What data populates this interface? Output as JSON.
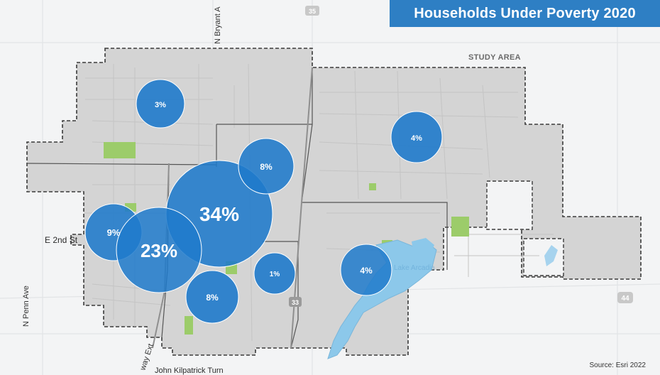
{
  "title": "Households Under Poverty 2020",
  "study_area_label": "STUDY AREA",
  "source": "Source: Esri 2022",
  "street_labels": {
    "bryant": "N Bryant A",
    "second": "E 2nd St",
    "penn": "N Penn Ave",
    "broadway": "way Ext",
    "lake_park": "John Kilpatrick Turn"
  },
  "highway_shields": {
    "i35": "35",
    "us44": "44",
    "r33": "33"
  },
  "bubbles": [
    {
      "name": "bubble-nw",
      "label": "3%"
    },
    {
      "name": "bubble-ne",
      "label": "4%"
    },
    {
      "name": "bubble-center-small",
      "label": "8%"
    },
    {
      "name": "bubble-center-large",
      "label": "34%"
    },
    {
      "name": "bubble-west",
      "label": "9%"
    },
    {
      "name": "bubble-sw-large",
      "label": "23%"
    },
    {
      "name": "bubble-south",
      "label": "8%"
    },
    {
      "name": "bubble-south-center",
      "label": "1%"
    },
    {
      "name": "bubble-lake",
      "label": "4%"
    }
  ],
  "lake_label": "Lake Arcadia",
  "colors": {
    "title_bg": "#2e7fc4",
    "bubble_fill": "#1f7acb",
    "study_area_fill": "#d4d4d4",
    "water": "#8cc8ea",
    "park": "#9ccc6a"
  }
}
